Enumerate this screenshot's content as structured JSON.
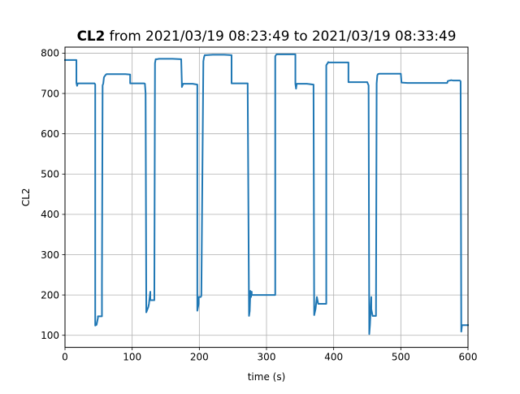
{
  "title": {
    "bold": "CL2",
    "rest": " from 2021/03/19 08:23:49 to 2021/03/19 08:33:49"
  },
  "chart_data": {
    "type": "line",
    "title": "CL2 from 2021/03/19 08:23:49 to 2021/03/19 08:33:49",
    "xlabel": "time (s)",
    "ylabel": "CL2",
    "xlim": [
      0,
      600
    ],
    "ylim": [
      70,
      815
    ],
    "xticks": [
      0,
      100,
      200,
      300,
      400,
      500,
      600
    ],
    "yticks": [
      100,
      200,
      300,
      400,
      500,
      600,
      700,
      800
    ],
    "grid": true,
    "legend": "none",
    "colors": {
      "line": "#1f77b4",
      "grid": "#b0b0b0"
    },
    "series": [
      {
        "x": [
          0,
          17,
          17,
          18,
          19,
          44,
          45,
          45,
          47,
          49,
          49,
          55,
          55,
          56,
          57,
          58,
          60,
          61,
          62,
          70,
          80,
          90,
          97,
          97,
          100,
          110,
          118,
          119,
          120,
          121,
          121,
          124,
          125,
          127,
          127,
          130,
          133,
          134,
          135,
          137,
          140,
          160,
          173,
          174,
          174,
          176,
          190,
          197,
          197,
          198,
          199,
          199,
          202,
          203,
          206,
          207,
          208,
          210,
          220,
          237,
          248,
          248,
          260,
          272,
          272,
          274,
          275,
          276,
          277,
          278,
          278,
          280,
          290,
          300,
          313,
          313,
          314,
          315,
          318,
          330,
          343,
          343,
          344,
          345,
          346,
          360,
          370,
          371,
          373,
          375,
          377,
          380,
          389,
          389,
          391,
          392,
          392,
          394,
          400,
          422,
          422,
          430,
          450,
          452,
          453,
          454,
          456,
          456,
          458,
          460,
          463,
          464,
          465,
          466,
          468,
          470,
          480,
          500,
          501,
          510,
          550,
          568,
          569,
          570,
          575,
          578,
          588,
          589,
          590,
          591,
          593,
          600
        ],
        "y": [
          783,
          783,
          726,
          719,
          725,
          725,
          722,
          124,
          126,
          143,
          147,
          147,
          225,
          720,
          725,
          740,
          745,
          747,
          748,
          748,
          748,
          748,
          747,
          725,
          725,
          725,
          725,
          724,
          700,
          180,
          157,
          170,
          178,
          208,
          187,
          187,
          187,
          775,
          785,
          785,
          786,
          786,
          785,
          724,
          716,
          724,
          724,
          722,
          161,
          170,
          178,
          195,
          195,
          198,
          780,
          790,
          795,
          795,
          796,
          796,
          795,
          725,
          725,
          725,
          712,
          148,
          160,
          210,
          195,
          208,
          200,
          200,
          200,
          200,
          200,
          792,
          795,
          797,
          797,
          797,
          797,
          724,
          712,
          724,
          724,
          724,
          722,
          150,
          165,
          195,
          178,
          178,
          178,
          770,
          775,
          778,
          777,
          777,
          777,
          777,
          728,
          728,
          728,
          720,
          103,
          125,
          195,
          165,
          148,
          148,
          148,
          725,
          745,
          748,
          749,
          749,
          749,
          749,
          727,
          726,
          726,
          726,
          726,
          731,
          733,
          732,
          732,
          730,
          109,
          125,
          125,
          125
        ]
      }
    ]
  }
}
